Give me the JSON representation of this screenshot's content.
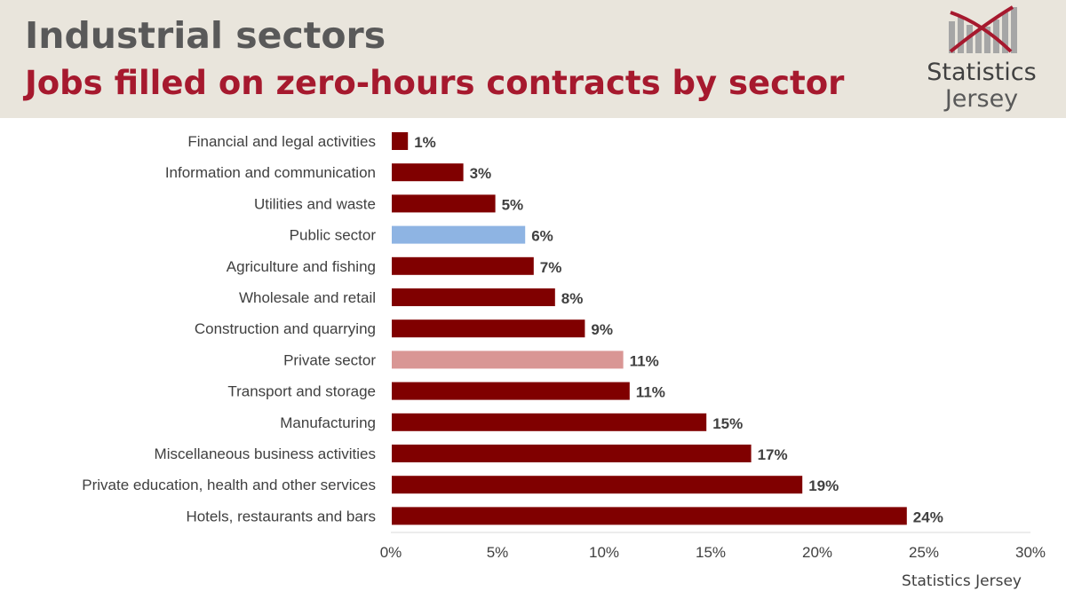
{
  "header": {
    "title": "Industrial sectors",
    "subtitle": "Jobs filled on zero-hours contracts by sector"
  },
  "logo": {
    "line1": "Statistics",
    "line2": "Jersey"
  },
  "source": "Statistics Jersey",
  "colors": {
    "default_bar": "#800000",
    "public_sector": "#8eb4e3",
    "private_sector": "#d99694",
    "header_bg": "#e9e5dc",
    "subtitle": "#a6192e"
  },
  "chart_data": {
    "type": "bar",
    "orientation": "horizontal",
    "categories": [
      "Financial and legal activities",
      "Information and communication",
      "Utilities and waste",
      "Public sector",
      "Agriculture and fishing",
      "Wholesale and retail",
      "Construction and quarrying",
      "Private sector",
      "Transport and storage",
      "Manufacturing",
      "Miscellaneous business activities",
      "Private education, health and other services",
      "Hotels, restaurants and bars"
    ],
    "values": [
      0.8,
      3.4,
      4.9,
      6.3,
      6.7,
      7.7,
      9.1,
      10.9,
      11.2,
      14.8,
      16.9,
      19.3,
      24.2
    ],
    "data_labels": [
      "1%",
      "3%",
      "5%",
      "6%",
      "7%",
      "8%",
      "9%",
      "11%",
      "11%",
      "15%",
      "17%",
      "19%",
      "24%"
    ],
    "bar_colors": [
      "#800000",
      "#800000",
      "#800000",
      "#8eb4e3",
      "#800000",
      "#800000",
      "#800000",
      "#d99694",
      "#800000",
      "#800000",
      "#800000",
      "#800000",
      "#800000"
    ],
    "xlim": [
      0,
      30
    ],
    "xticks": [
      0,
      5,
      10,
      15,
      20,
      25,
      30
    ],
    "xtick_labels": [
      "0%",
      "5%",
      "10%",
      "15%",
      "20%",
      "25%",
      "30%"
    ],
    "grid": false
  }
}
